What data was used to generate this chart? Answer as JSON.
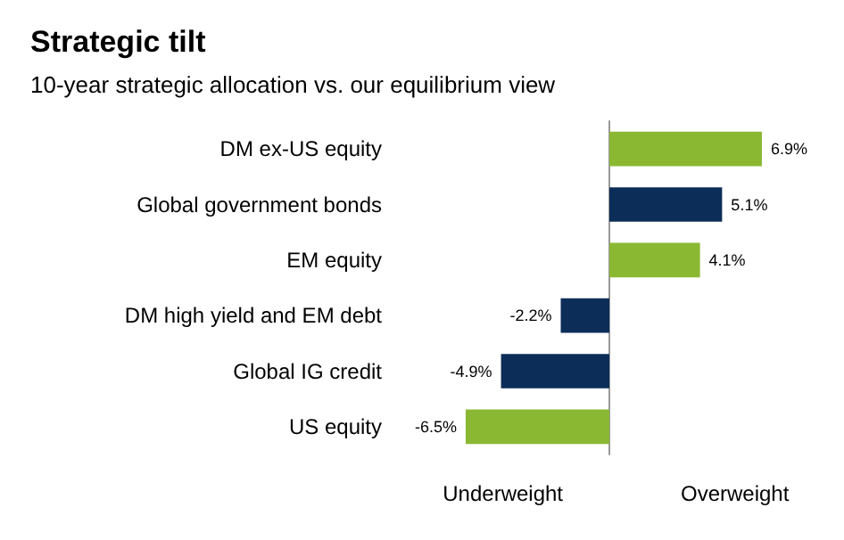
{
  "chart_data": {
    "type": "bar",
    "orientation": "horizontal",
    "title": "Strategic tilt",
    "subtitle": "10-year strategic allocation vs. our equilibrium view",
    "categories": [
      "DM ex-US equity",
      "Global government bonds",
      "EM equity",
      "DM high yield and EM debt",
      "Global IG credit",
      "US equity"
    ],
    "values": [
      6.9,
      5.1,
      4.1,
      -2.2,
      -4.9,
      -6.5
    ],
    "colors": [
      "#8ab833",
      "#0c2d57",
      "#8ab833",
      "#0c2d57",
      "#0c2d57",
      "#8ab833"
    ],
    "value_labels": [
      "6.9%",
      "5.1%",
      "4.1%",
      "-2.2%",
      "-4.9%",
      "-6.5%"
    ],
    "annotations": [
      "Underweight",
      "Overweight"
    ]
  }
}
